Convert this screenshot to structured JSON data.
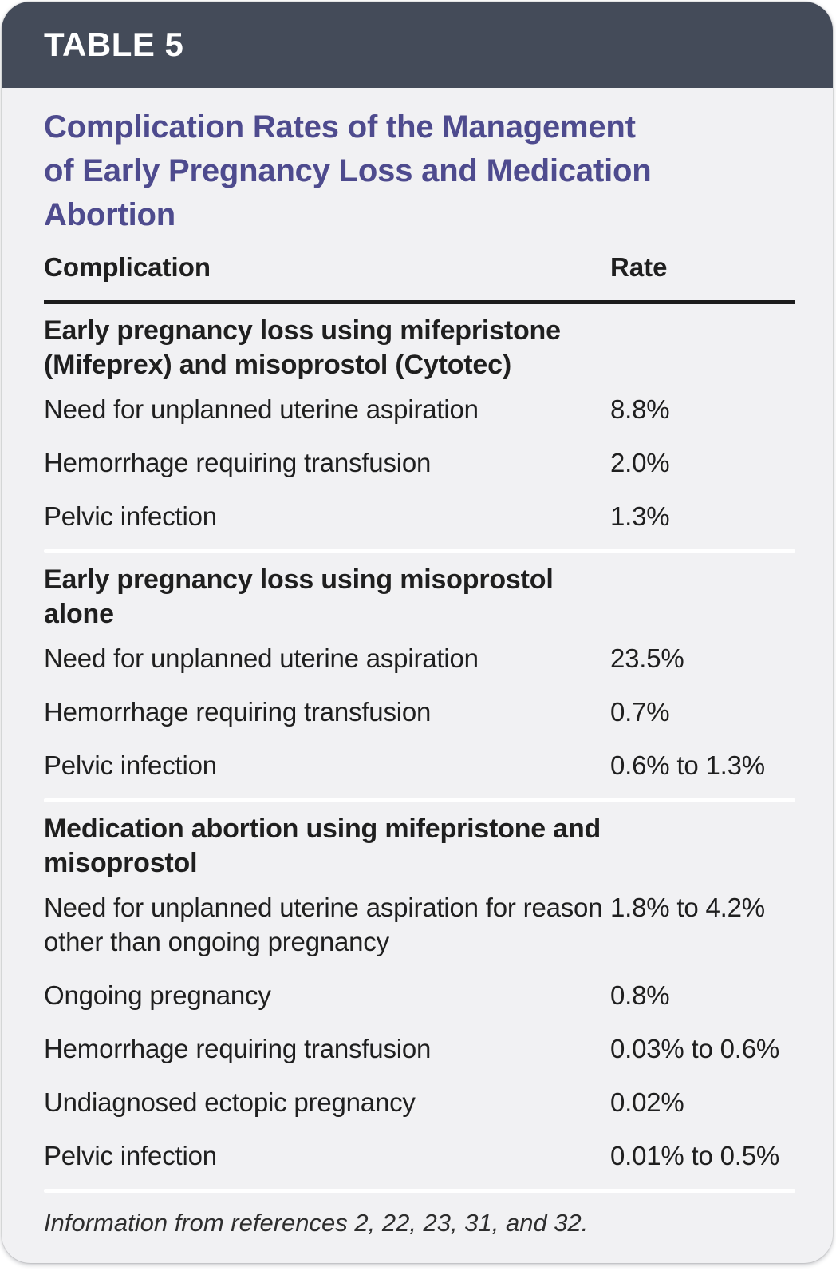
{
  "colors": {
    "header_bg": "#444b59",
    "card_bg": "#f1f1f3",
    "title": "#4e4b8e",
    "text": "#1f1f1f",
    "rule": "#1c1c1c",
    "divider": "#ffffff"
  },
  "header": {
    "table_label": "TABLE 5"
  },
  "title_lines": [
    "Complication Rates of the Management",
    "of Early Pregnancy Loss and Medication",
    "Abortion"
  ],
  "table": {
    "columns": [
      "Complication",
      "Rate"
    ],
    "sections": [
      {
        "header": "Early pregnancy loss using mifepristone (Mifeprex) and misoprostol (Cytotec)",
        "rows": [
          {
            "complication": "Need for unplanned uterine aspiration",
            "rate": "8.8%"
          },
          {
            "complication": "Hemorrhage requiring transfusion",
            "rate": "2.0%"
          },
          {
            "complication": "Pelvic infection",
            "rate": "1.3%"
          }
        ]
      },
      {
        "header": "Early pregnancy loss using misoprostol alone",
        "rows": [
          {
            "complication": "Need for unplanned uterine aspiration",
            "rate": "23.5%"
          },
          {
            "complication": "Hemorrhage requiring transfusion",
            "rate": "0.7%"
          },
          {
            "complication": "Pelvic infection",
            "rate": "0.6% to 1.3%"
          }
        ]
      },
      {
        "header": "Medication abortion using mifepristone and misoprostol",
        "rows": [
          {
            "complication": "Need for unplanned uterine aspiration for reason other than ongoing pregnancy",
            "rate": "1.8% to 4.2%"
          },
          {
            "complication": "Ongoing pregnancy",
            "rate": "0.8%"
          },
          {
            "complication": "Hemorrhage requiring transfusion",
            "rate": "0.03% to 0.6%"
          },
          {
            "complication": "Undiagnosed ectopic pregnancy",
            "rate": "0.02%"
          },
          {
            "complication": "Pelvic infection",
            "rate": "0.01% to 0.5%"
          }
        ]
      }
    ]
  },
  "footnote": "Information from references 2, 22, 23, 31, and 32."
}
